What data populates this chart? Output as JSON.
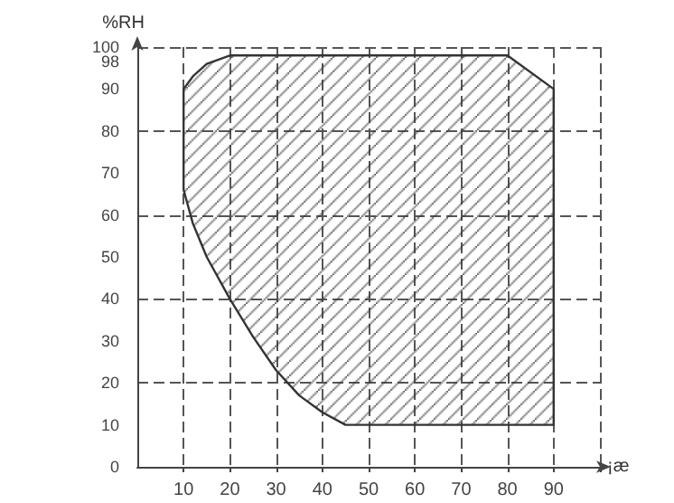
{
  "chart_data": {
    "type": "area",
    "xlabel": "¡æ",
    "ylabel": "%RH",
    "series": [
      {
        "color": "#333333",
        "x": [
          10,
          10,
          12,
          15,
          20,
          30,
          40,
          50,
          60,
          70,
          80,
          90,
          90,
          80,
          70,
          60,
          50,
          45,
          40,
          35,
          30,
          25,
          20,
          15,
          12,
          10
        ],
        "values": [
          66,
          90,
          93,
          96,
          98,
          98,
          98,
          98,
          98,
          98,
          98,
          90,
          10,
          10,
          10,
          10,
          10,
          10,
          13,
          17,
          23,
          31,
          40,
          50,
          58,
          66
        ]
      }
    ],
    "xlim": [
      0,
      100
    ],
    "ylim": [
      0,
      100
    ],
    "xticks": [
      10,
      20,
      30,
      40,
      50,
      60,
      70,
      80,
      90,
      {
        "value": 100,
        "label": null
      }
    ],
    "yticks": [
      0,
      10,
      20,
      30,
      40,
      50,
      60,
      70,
      80,
      90,
      98,
      100
    ],
    "grid": true
  }
}
